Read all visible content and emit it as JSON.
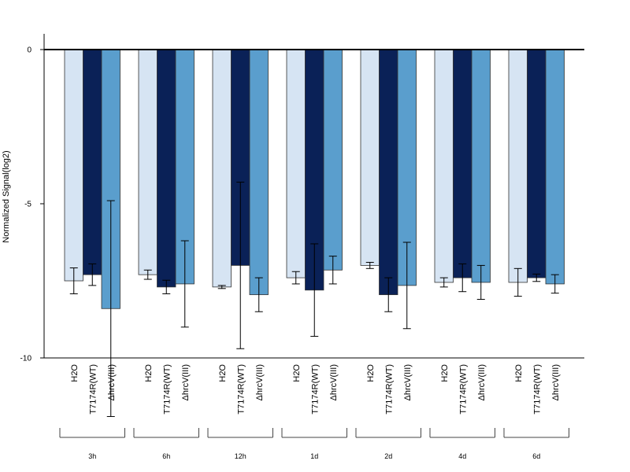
{
  "chart_data": {
    "type": "bar",
    "ylabel": "Normalized Signal(log2)",
    "ylim": [
      -10,
      0.5
    ],
    "yticks": [
      "0",
      "-5",
      "-10"
    ],
    "zero_line": true,
    "groups": [
      "3h",
      "6h",
      "12h",
      "1d",
      "2d",
      "4d",
      "6d"
    ],
    "series": [
      {
        "name": "H2O",
        "color": "#d6e4f3",
        "values": [
          -7.5,
          -7.3,
          -7.7,
          -7.4,
          -7.0,
          -7.55,
          -7.55
        ],
        "errors": [
          0.42,
          0.15,
          0.05,
          0.2,
          0.1,
          0.15,
          0.45
        ]
      },
      {
        "name": "T7174R(WT)",
        "color": "#0a2157",
        "values": [
          -7.3,
          -7.7,
          -7.0,
          -7.8,
          -7.95,
          -7.4,
          -7.4
        ],
        "errors": [
          0.35,
          0.22,
          2.7,
          1.5,
          0.55,
          0.45,
          0.12
        ]
      },
      {
        "name": "ΔhrcV(III)",
        "color": "#5a9ecd",
        "values": [
          -8.4,
          -7.6,
          -7.95,
          -7.15,
          -7.65,
          -7.55,
          -7.6
        ],
        "errors": [
          3.5,
          1.4,
          0.55,
          0.45,
          1.4,
          0.55,
          0.3
        ]
      }
    ]
  }
}
